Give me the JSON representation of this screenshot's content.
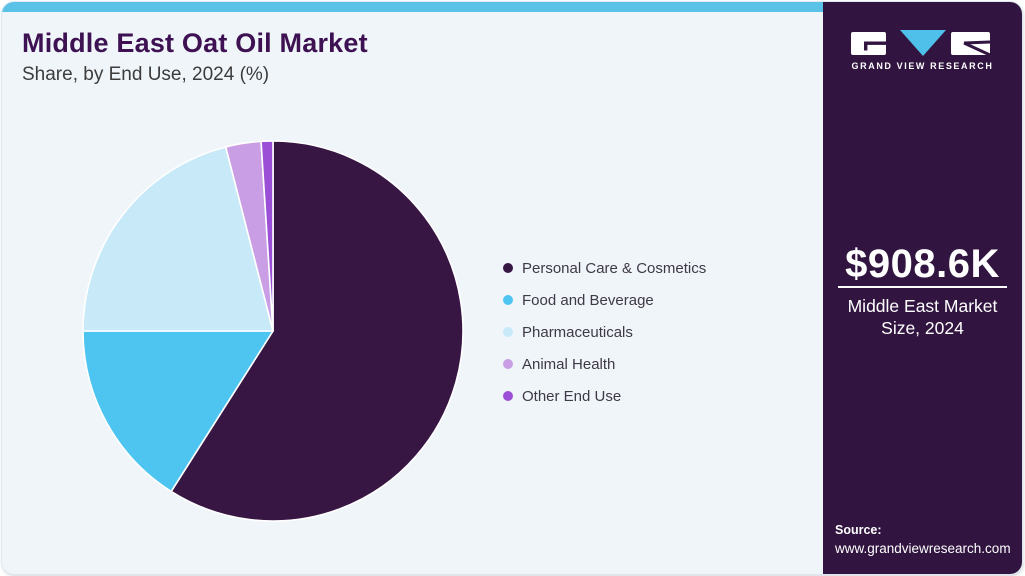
{
  "header": {
    "title": "Middle East Oat Oil Market",
    "subtitle": "Share, by End Use, 2024 (%)"
  },
  "chart_data": {
    "type": "pie",
    "title": "Middle East Oat Oil Market Share, by End Use, 2024 (%)",
    "categories": [
      "Personal Care & Cosmetics",
      "Food and Beverage",
      "Pharmaceuticals",
      "Animal Health",
      "Other End Use"
    ],
    "values": [
      59,
      16,
      21,
      3,
      1
    ],
    "unit": "%",
    "colors": [
      "#371643",
      "#4EC5F0",
      "#C7E9F8",
      "#C99EE4",
      "#9B4FD6"
    ],
    "start_angle_deg": -90,
    "direction": "clockwise",
    "legend_position": "right"
  },
  "sidebar": {
    "brand": "GRAND VIEW RESEARCH",
    "market_size": {
      "value": "$908.6K",
      "label": "Middle East Market Size, 2024"
    },
    "source": {
      "label": "Source:",
      "url": "www.grandviewresearch.com"
    }
  },
  "colors": {
    "accent_bar": "#5BC2E7",
    "card_background": "#F0F5FA",
    "sidebar_background": "#311540",
    "title_text": "#3D1152",
    "logo_triangle": "#4FC0EA"
  }
}
